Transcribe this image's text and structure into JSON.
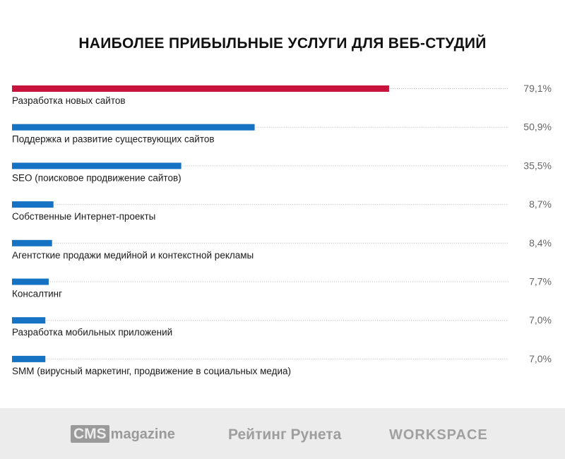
{
  "chart_data": {
    "type": "bar",
    "title": "НАИБОЛЕЕ ПРИБЫЛЬНЫЕ УСЛУГИ ДЛЯ ВЕБ-СТУДИЙ",
    "categories": [
      "Разработка новых сайтов",
      "Поддержка и развитие существующих сайтов",
      "SEO (поисковое продвижение сайтов)",
      "Собственные Интернет-проекты",
      "Агентсткие продажи медийной и контекстной рекламы",
      "Консалтинг",
      "Разработка мобильных приложений",
      "SMM (вирусный маркетинг, продвижение в социальных медиа)"
    ],
    "values": [
      79.1,
      50.9,
      35.5,
      8.7,
      8.4,
      7.7,
      7.0,
      7.0
    ],
    "value_labels": [
      "79,1%",
      "50,9%",
      "35,5%",
      "8,7%",
      "8,4%",
      "7,7%",
      "7,0%",
      "7,0%"
    ],
    "highlight_index": 0,
    "colors": {
      "highlight": "#c8143c",
      "default": "#1673c3",
      "leader": "#b5b5b5",
      "label": "#1a1a1a",
      "value": "#666666"
    },
    "orientation": "horizontal",
    "xlim": [
      0,
      100
    ]
  },
  "footer": {
    "logos": {
      "cms_box": "CMS",
      "cms_rest": "magazine",
      "rating": "Рейтинг Рунета",
      "workspace": "WORKSPACE"
    }
  }
}
